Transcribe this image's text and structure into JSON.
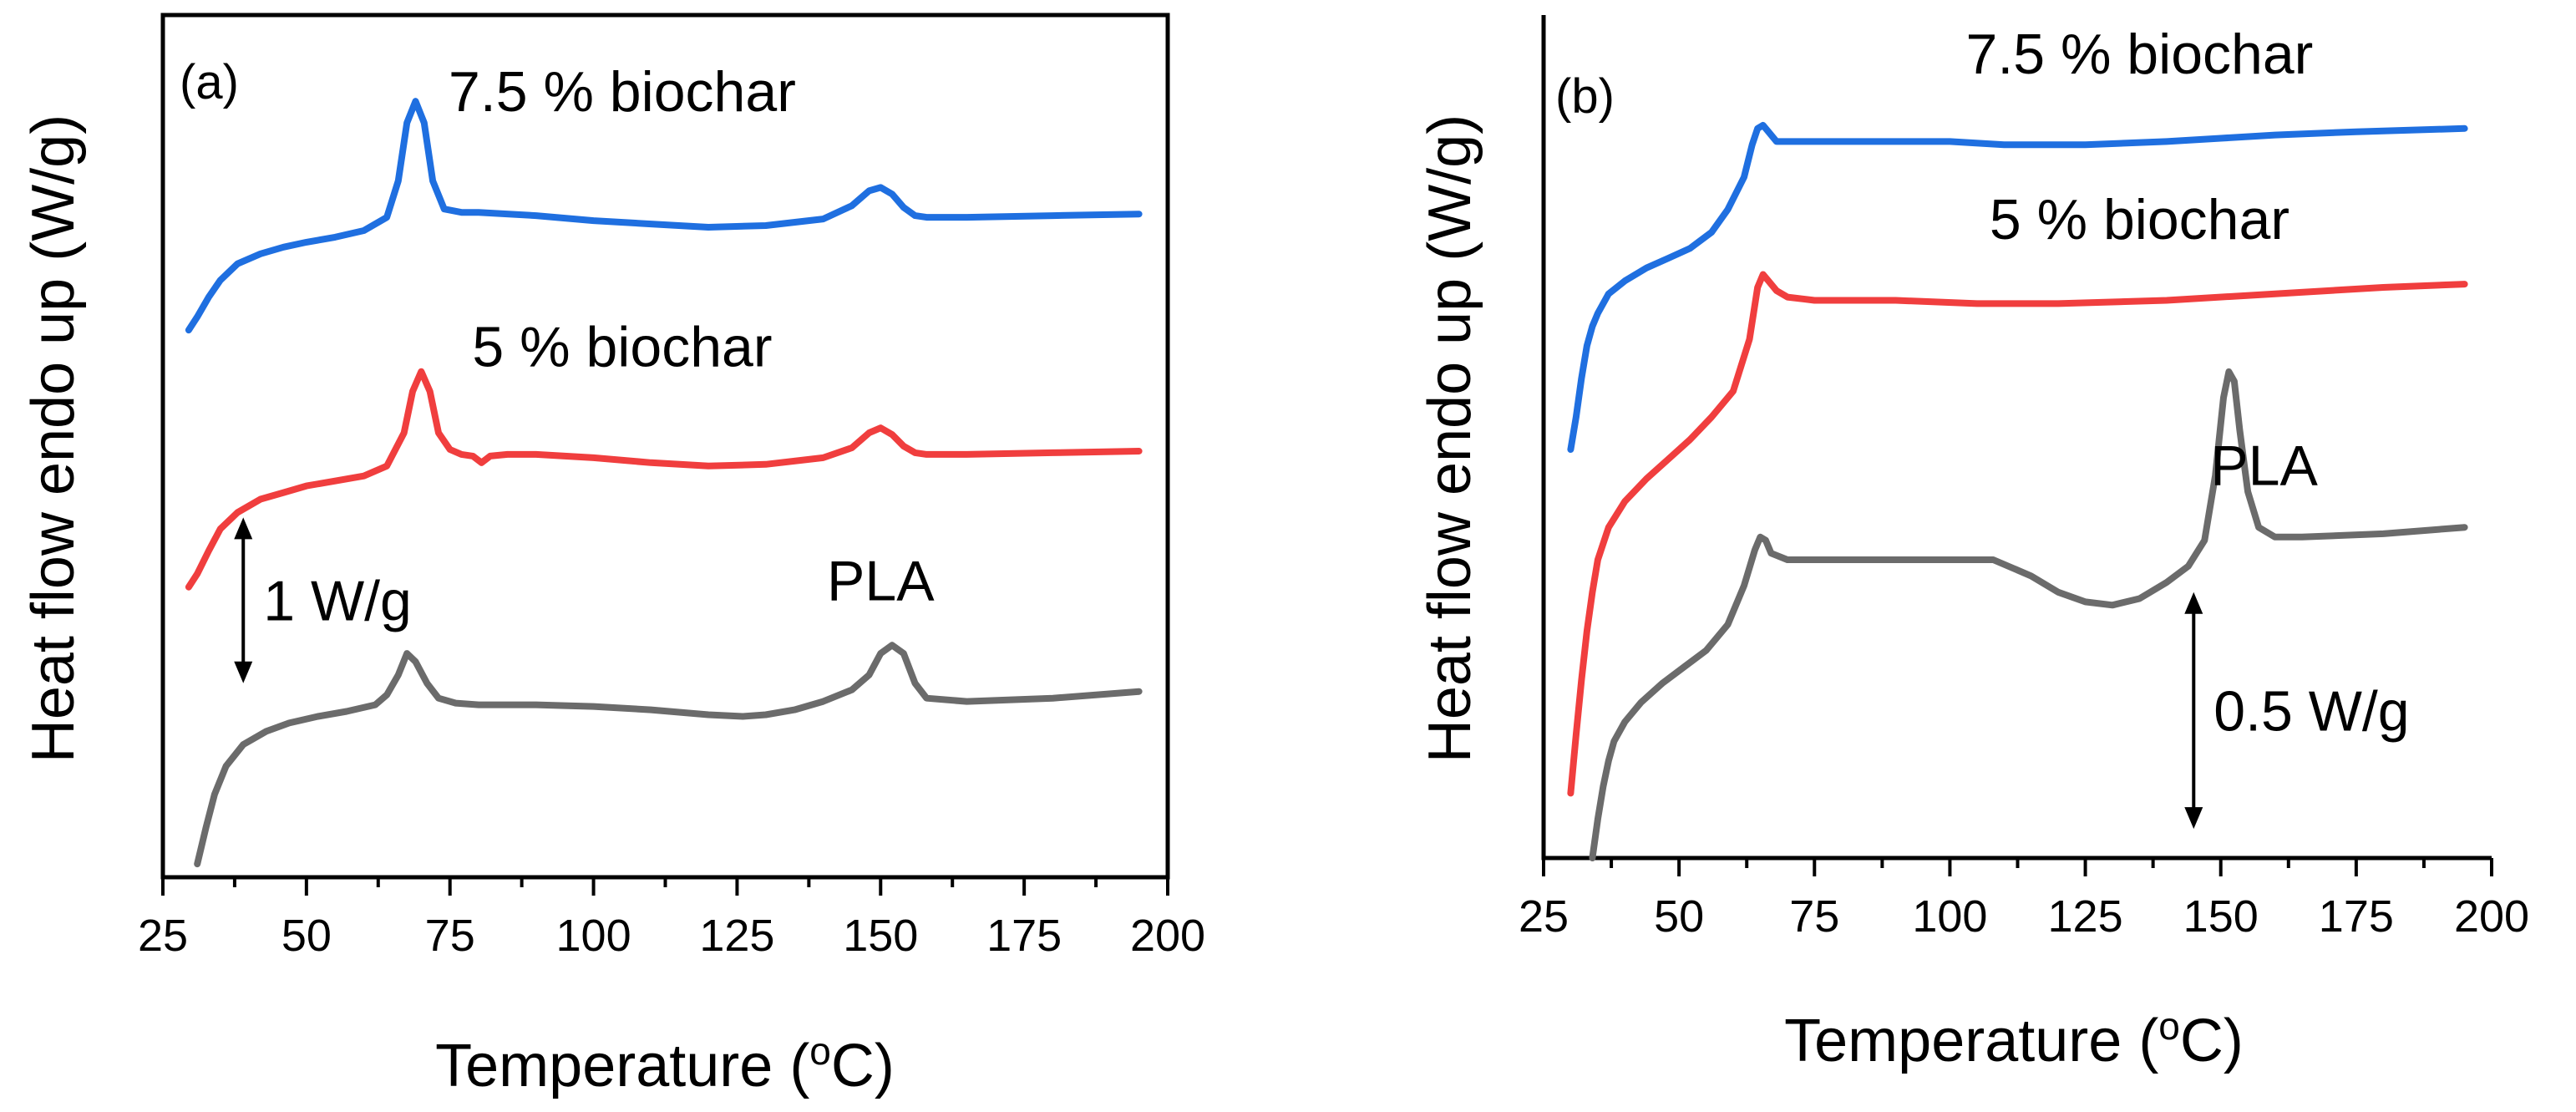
{
  "chart_data": [
    {
      "id": "a",
      "type": "line",
      "panel_label": "(a)",
      "xlabel": "Temperature (",
      "xlabel_sup": "o",
      "xlabel_end": "C)",
      "ylabel": "Heat flow endo up (W/g)",
      "xlim": [
        25,
        200
      ],
      "xticks": [
        25,
        50,
        75,
        100,
        125,
        150,
        175,
        200
      ],
      "xtick_labels": [
        "25",
        "50",
        "75",
        "100",
        "125",
        "150",
        "175",
        "200"
      ],
      "ylim": [
        0,
        5.2
      ],
      "yticks": false,
      "scale_bar": {
        "label": "1 W/g",
        "x": 39,
        "y_from": 1.17,
        "y_to": 2.17
      },
      "series": [
        {
          "name": "7.5 % biochar",
          "color": "#1f6fe0",
          "label_anchor": [
            105,
            4.62
          ],
          "x": [
            29.5,
            31,
            33,
            35,
            38,
            42,
            46,
            50,
            55,
            60,
            64,
            66,
            67.5,
            69,
            70.5,
            72,
            74,
            77,
            80,
            90,
            100,
            110,
            120,
            130,
            140,
            145,
            148,
            150,
            152,
            154,
            156,
            158,
            165,
            180,
            195
          ],
          "y": [
            3.3,
            3.38,
            3.5,
            3.6,
            3.7,
            3.76,
            3.8,
            3.83,
            3.86,
            3.9,
            3.98,
            4.2,
            4.55,
            4.68,
            4.55,
            4.2,
            4.03,
            4.01,
            4.01,
            3.99,
            3.96,
            3.94,
            3.92,
            3.93,
            3.97,
            4.05,
            4.14,
            4.16,
            4.12,
            4.04,
            3.99,
            3.98,
            3.98,
            3.99,
            4.0
          ]
        },
        {
          "name": "5 % biochar",
          "color": "#f03e3e",
          "label_anchor": [
            105,
            3.08
          ],
          "x": [
            29.5,
            31,
            33,
            35,
            38,
            42,
            46,
            50,
            55,
            60,
            64,
            67,
            68.5,
            70,
            71.5,
            73,
            75,
            77,
            79,
            80.5,
            82,
            85,
            90,
            100,
            110,
            120,
            130,
            140,
            145,
            148,
            150,
            152,
            154,
            156,
            158,
            165,
            180,
            195
          ],
          "y": [
            1.75,
            1.83,
            1.97,
            2.1,
            2.2,
            2.28,
            2.32,
            2.36,
            2.39,
            2.42,
            2.48,
            2.68,
            2.93,
            3.05,
            2.93,
            2.68,
            2.58,
            2.55,
            2.54,
            2.5,
            2.54,
            2.55,
            2.55,
            2.53,
            2.5,
            2.48,
            2.49,
            2.53,
            2.59,
            2.68,
            2.71,
            2.67,
            2.6,
            2.56,
            2.55,
            2.55,
            2.56,
            2.57
          ]
        },
        {
          "name": "PLA",
          "color": "#6b6b6b",
          "label_anchor": [
            150,
            1.67
          ],
          "x": [
            31,
            32.5,
            34,
            36,
            39,
            43,
            47,
            52,
            57,
            62,
            64,
            66,
            67.5,
            69,
            71,
            73,
            76,
            80,
            90,
            100,
            110,
            120,
            126,
            130,
            135,
            140,
            145,
            148,
            150,
            152,
            154,
            156,
            158,
            165,
            180,
            195
          ],
          "y": [
            0.08,
            0.3,
            0.5,
            0.67,
            0.8,
            0.88,
            0.93,
            0.97,
            1.0,
            1.04,
            1.1,
            1.22,
            1.35,
            1.3,
            1.17,
            1.08,
            1.05,
            1.04,
            1.04,
            1.03,
            1.01,
            0.98,
            0.97,
            0.98,
            1.01,
            1.06,
            1.13,
            1.22,
            1.35,
            1.4,
            1.35,
            1.17,
            1.08,
            1.06,
            1.08,
            1.12
          ]
        }
      ]
    },
    {
      "id": "b",
      "type": "line",
      "panel_label": "(b)",
      "xlabel": "Temperature (",
      "xlabel_sup": "o",
      "xlabel_end": "C)",
      "ylabel": "Heat flow endo up (W/g)",
      "xlim": [
        25,
        200
      ],
      "xticks": [
        25,
        50,
        75,
        100,
        125,
        150,
        175,
        200
      ],
      "xtick_labels": [
        "25",
        "50",
        "75",
        "100",
        "125",
        "150",
        "175",
        "200"
      ],
      "ylim": [
        0,
        2.6
      ],
      "yticks": false,
      "scale_bar": {
        "label": "0.5 W/g",
        "x": 145,
        "y_from": 0.09,
        "y_to": 0.82
      },
      "series": [
        {
          "name": "7.5 % biochar",
          "color": "#1f6fe0",
          "label_anchor": [
            135,
            2.42
          ],
          "x": [
            30,
            31,
            32,
            33,
            34,
            35,
            37,
            40,
            44,
            48,
            52,
            56,
            59,
            62,
            63.5,
            64.5,
            65.5,
            66.5,
            68,
            70,
            80,
            100,
            110,
            125,
            140,
            150,
            160,
            175,
            195
          ],
          "y": [
            1.26,
            1.36,
            1.48,
            1.58,
            1.64,
            1.68,
            1.74,
            1.78,
            1.82,
            1.85,
            1.88,
            1.93,
            2.0,
            2.1,
            2.2,
            2.25,
            2.26,
            2.24,
            2.21,
            2.21,
            2.21,
            2.21,
            2.2,
            2.2,
            2.21,
            2.22,
            2.23,
            2.24,
            2.25
          ]
        },
        {
          "name": "5 % biochar",
          "color": "#f03e3e",
          "label_anchor": [
            135,
            1.91
          ],
          "x": [
            30,
            31,
            32,
            33,
            34,
            35,
            37,
            40,
            44,
            48,
            52,
            56,
            60,
            63,
            64.5,
            65.5,
            66.5,
            68,
            70,
            75,
            90,
            105,
            120,
            140,
            160,
            180,
            195
          ],
          "y": [
            0.2,
            0.38,
            0.55,
            0.7,
            0.82,
            0.92,
            1.02,
            1.1,
            1.17,
            1.23,
            1.29,
            1.36,
            1.44,
            1.6,
            1.76,
            1.8,
            1.78,
            1.75,
            1.73,
            1.72,
            1.72,
            1.71,
            1.71,
            1.72,
            1.74,
            1.76,
            1.77
          ]
        },
        {
          "name": "PLA",
          "color": "#6b6b6b",
          "label_anchor": [
            158,
            1.15
          ],
          "x": [
            34,
            35,
            36,
            37,
            38,
            40,
            43,
            47,
            51,
            55,
            59,
            62,
            64,
            65,
            66,
            67,
            70,
            80,
            90,
            100,
            108,
            115,
            120,
            125,
            130,
            135,
            140,
            144,
            147,
            149,
            150.5,
            151.5,
            152.5,
            153.5,
            155,
            157,
            160,
            165,
            180,
            195
          ],
          "y": [
            0.0,
            0.12,
            0.22,
            0.3,
            0.36,
            0.42,
            0.48,
            0.54,
            0.59,
            0.64,
            0.72,
            0.84,
            0.95,
            0.99,
            0.98,
            0.94,
            0.92,
            0.92,
            0.92,
            0.92,
            0.92,
            0.87,
            0.82,
            0.79,
            0.78,
            0.8,
            0.85,
            0.9,
            0.98,
            1.18,
            1.42,
            1.5,
            1.47,
            1.32,
            1.13,
            1.02,
            0.99,
            0.99,
            1.0,
            1.02
          ]
        }
      ]
    }
  ]
}
